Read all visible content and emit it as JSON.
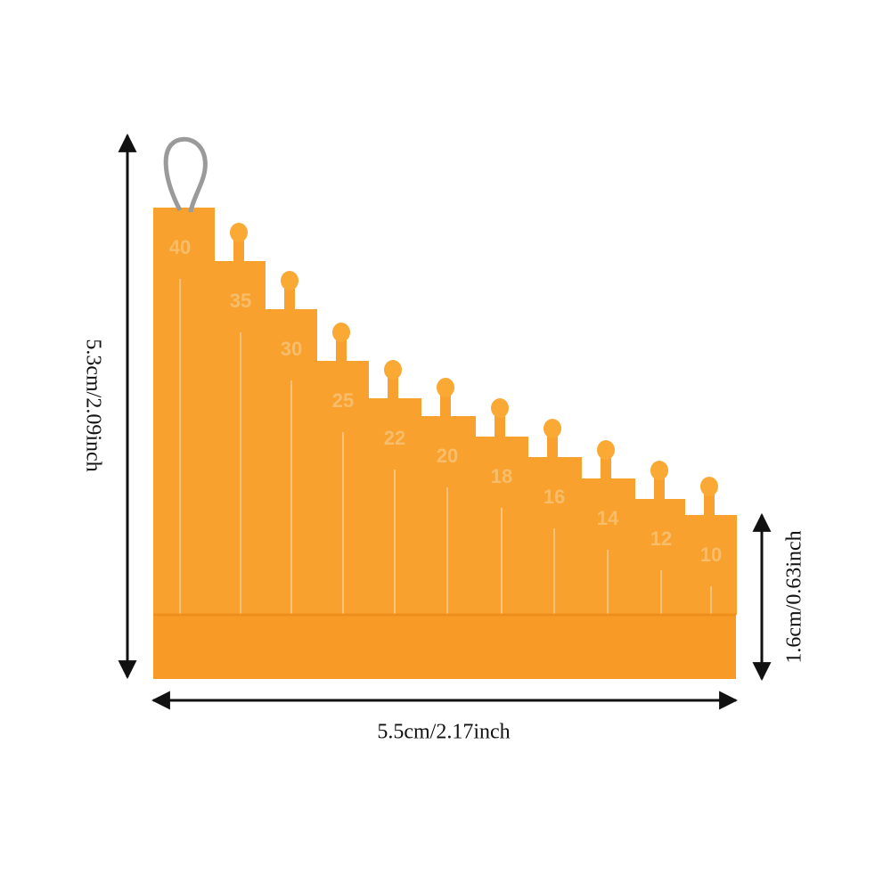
{
  "dimensions": {
    "height": "5.3cm/2.09inch",
    "step_height": "1.6cm/0.63inch",
    "width": "5.5cm/2.17inch"
  },
  "gauge": {
    "labels": [
      "40",
      "35",
      "30",
      "25",
      "22",
      "20",
      "18",
      "16",
      "14",
      "12",
      "10"
    ]
  }
}
